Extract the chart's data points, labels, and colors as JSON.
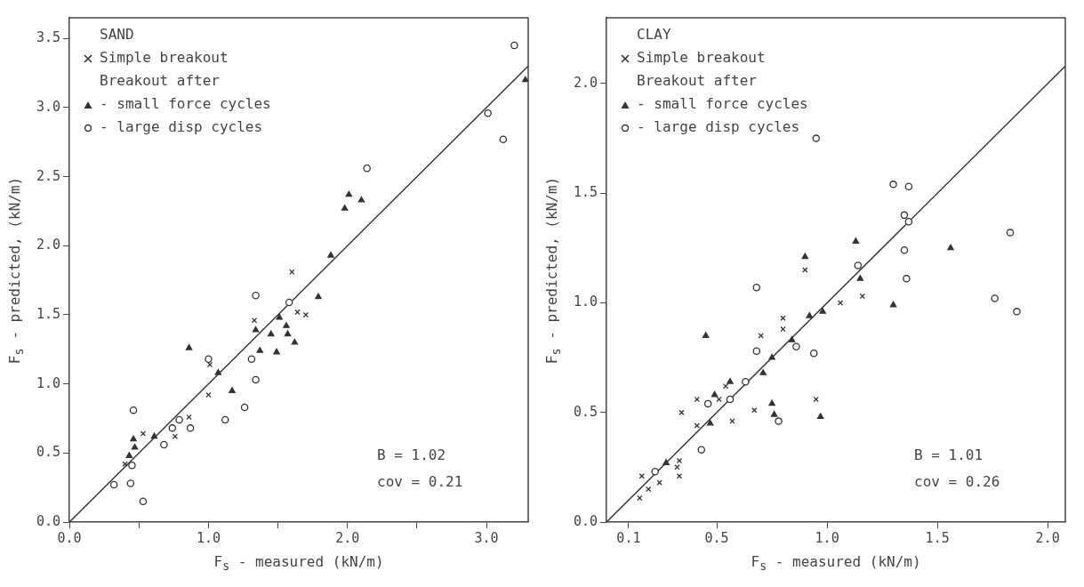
{
  "chart_data": [
    {
      "type": "scatter",
      "xlabel": "F$_{s}$ - measured (kN/m)",
      "ylabel": "F$_{s}$ - predicted, (kN/m)",
      "legend_title": "SAND",
      "legend": "top left",
      "grid": false,
      "annotations": [
        "Breakout after",
        "B = 1.02",
        "cov = 0.21"
      ],
      "xlim": [
        0,
        3.3
      ],
      "ylim": [
        0,
        3.65
      ],
      "xticks": [
        {
          "value": 0,
          "label": "0.0"
        },
        {
          "value": 0.5,
          "label": null
        },
        {
          "value": 1,
          "label": "1.0"
        },
        {
          "value": 1.5,
          "label": null
        },
        {
          "value": 2,
          "label": "2.0"
        },
        {
          "value": 2.5,
          "label": null
        },
        {
          "value": 3,
          "label": "3.0"
        }
      ],
      "yticks": [
        {
          "value": 0,
          "label": "0.0"
        },
        {
          "value": 0.5,
          "label": "0.5"
        },
        {
          "value": 1,
          "label": "1.0"
        },
        {
          "value": 1.5,
          "label": "1.5"
        },
        {
          "value": 2,
          "label": "2.0"
        },
        {
          "value": 2.5,
          "label": "2.5"
        },
        {
          "value": 3,
          "label": "3.0"
        },
        {
          "value": 3.5,
          "label": "3.5"
        }
      ],
      "series": [
        {
          "name": "Simple breakout",
          "color": "#333333",
          "marker": "cross",
          "x": [
            1.6,
            1.33,
            1.0,
            1.01,
            0.76,
            0.53,
            1.64,
            1.7,
            0.86,
            0.4
          ],
          "values": [
            1.81,
            1.46,
            0.92,
            1.14,
            0.62,
            0.64,
            1.52,
            1.5,
            0.76,
            0.42
          ]
        },
        {
          "name": "- small force cycles",
          "color": "#333333",
          "marker": "triangle",
          "x": [
            0.86,
            0.46,
            0.47,
            0.43,
            0.61,
            1.07,
            1.17,
            1.34,
            1.45,
            1.49,
            1.51,
            1.56,
            1.57,
            1.62,
            1.79,
            1.37,
            1.88,
            2.01,
            1.98,
            2.1,
            3.28
          ],
          "values": [
            1.26,
            0.6,
            0.54,
            0.48,
            0.62,
            1.08,
            0.95,
            1.39,
            1.36,
            1.23,
            1.48,
            1.42,
            1.36,
            1.3,
            1.63,
            1.24,
            1.93,
            2.37,
            2.27,
            2.33,
            3.2
          ]
        },
        {
          "name": "- large disp cycles",
          "color": "#333333",
          "marker": "circle",
          "x": [
            1.34,
            1.58,
            1.34,
            1.26,
            1.12,
            1.31,
            0.87,
            0.79,
            0.74,
            0.68,
            0.46,
            0.45,
            0.32,
            0.44,
            0.53,
            1.0,
            2.14,
            3.01,
            3.12,
            3.2
          ],
          "values": [
            1.64,
            1.59,
            1.03,
            0.83,
            0.74,
            1.18,
            0.68,
            0.74,
            0.68,
            0.56,
            0.81,
            0.41,
            0.27,
            0.28,
            0.15,
            1.18,
            2.56,
            2.96,
            2.77,
            3.45
          ]
        },
        {
          "type": "line",
          "color": "#333333",
          "marker": "none",
          "x": [
            0,
            3.3
          ],
          "values": [
            0,
            3.3
          ]
        }
      ]
    },
    {
      "type": "scatter",
      "xlabel": "F$_{s}$ - measured (kN/m)",
      "ylabel": "F$_{s}$ - predicted, (kN/m)",
      "legend_title": "CLAY",
      "legend": "top left",
      "grid": false,
      "annotations": [
        "Breakout after",
        "B = 1.01",
        "cov = 0.26"
      ],
      "xlim": [
        0,
        2.08
      ],
      "ylim": [
        0,
        2.3
      ],
      "xticks": [
        {
          "value": 0.1,
          "label": "0.1"
        },
        {
          "value": 0.5,
          "label": "0.5"
        },
        {
          "value": 1,
          "label": "1.0"
        },
        {
          "value": 1.5,
          "label": "1.5"
        },
        {
          "value": 2,
          "label": "2.0"
        }
      ],
      "yticks": [
        {
          "value": 0,
          "label": "0.0"
        },
        {
          "value": 0.5,
          "label": "0.5"
        },
        {
          "value": 1,
          "label": "1.0"
        },
        {
          "value": 1.5,
          "label": "1.5"
        },
        {
          "value": 2,
          "label": "2.0"
        }
      ],
      "series": [
        {
          "name": "Simple breakout",
          "color": "#333333",
          "marker": "cross",
          "x": [
            0.8,
            0.8,
            0.7,
            0.34,
            0.41,
            0.54,
            0.51,
            0.67,
            0.57,
            0.95,
            0.16,
            0.15,
            0.19,
            0.24,
            0.33,
            0.32,
            0.33,
            1.06,
            0.41,
            0.9,
            1.16
          ],
          "values": [
            0.93,
            0.88,
            0.85,
            0.5,
            0.44,
            0.62,
            0.56,
            0.51,
            0.46,
            0.56,
            0.21,
            0.11,
            0.15,
            0.18,
            0.28,
            0.25,
            0.21,
            1.0,
            0.56,
            1.15,
            1.03
          ]
        },
        {
          "name": "- small force cycles",
          "color": "#333333",
          "marker": "triangle",
          "x": [
            0.45,
            0.56,
            0.49,
            0.47,
            0.27,
            0.71,
            0.75,
            0.84,
            0.92,
            0.98,
            0.75,
            0.76,
            0.97,
            1.13,
            0.9,
            1.56,
            1.3,
            1.15
          ],
          "values": [
            0.85,
            0.64,
            0.58,
            0.45,
            0.27,
            0.68,
            0.75,
            0.83,
            0.94,
            0.96,
            0.54,
            0.49,
            0.48,
            1.28,
            1.21,
            1.25,
            0.99,
            1.11
          ]
        },
        {
          "name": "- large disp cycles",
          "color": "#333333",
          "marker": "circle",
          "x": [
            0.68,
            0.68,
            0.86,
            0.94,
            0.63,
            0.56,
            0.46,
            0.43,
            0.22,
            0.78,
            1.3,
            1.37,
            1.35,
            1.37,
            1.83,
            1.35,
            1.14,
            1.36,
            1.76,
            1.86,
            0.95
          ],
          "values": [
            1.07,
            0.78,
            0.8,
            0.77,
            0.64,
            0.56,
            0.54,
            0.33,
            0.23,
            0.46,
            1.54,
            1.53,
            1.4,
            1.37,
            1.32,
            1.24,
            1.17,
            1.11,
            1.02,
            0.96,
            1.75
          ]
        },
        {
          "type": "line",
          "color": "#333333",
          "marker": "none",
          "x": [
            0,
            2.08
          ],
          "values": [
            0,
            2.08
          ]
        }
      ]
    }
  ]
}
